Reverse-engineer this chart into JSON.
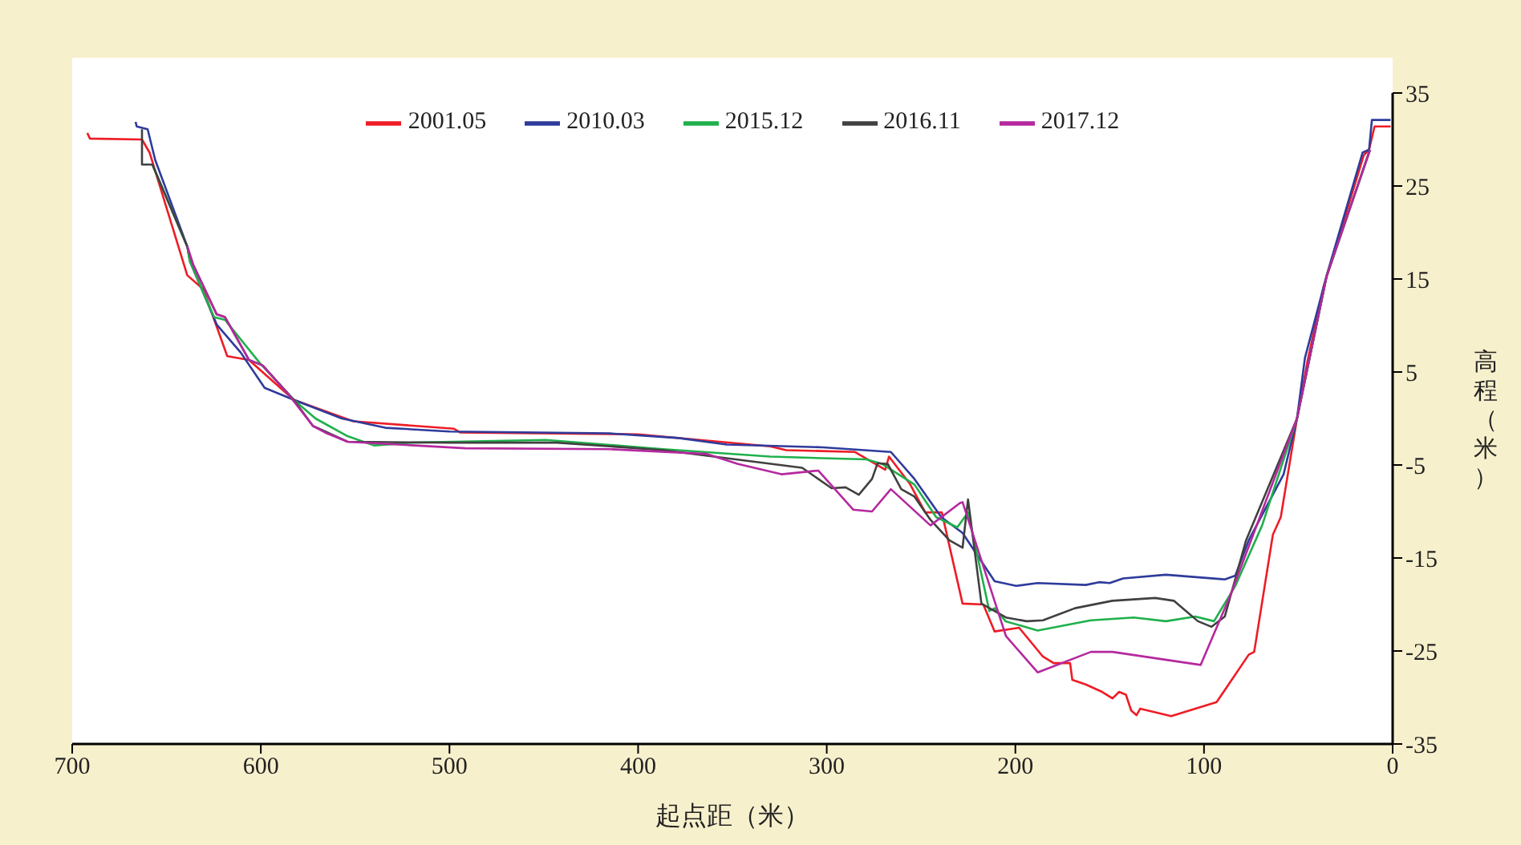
{
  "chart_data": {
    "type": "line",
    "xlabel": "起点距（米）",
    "ylabel": "高程（米）",
    "xlim": [
      700,
      0
    ],
    "xticks": [
      700,
      600,
      500,
      400,
      300,
      200,
      100,
      0
    ],
    "ylim": [
      -35,
      35
    ],
    "yticks": [
      -35,
      -25,
      -15,
      -5,
      5,
      15,
      25,
      35
    ],
    "grid": false,
    "legend": "top",
    "marker": "none",
    "line_style": "solid",
    "series": [
      {
        "name": "2001.05",
        "color": "#ee1c25",
        "x": [
          692,
          690.6,
          663,
          659,
          639,
          630.5,
          617.8,
          606.3,
          582.5,
          551,
          497.6,
          494.4,
          400,
          330,
          321.5,
          285,
          269,
          267,
          256,
          247.8,
          239,
          228,
          217,
          211,
          198,
          185.4,
          179.7,
          171,
          169.8,
          162.7,
          154,
          148.5,
          145,
          141.4,
          138.6,
          135.8,
          133.8,
          117.4,
          93.3,
          76.3,
          73.4,
          63.5,
          59.3,
          50.7,
          45,
          36.6,
          15.3,
          12.5,
          9.6,
          1.1
        ],
        "values": [
          30.7,
          30.1,
          30.0,
          28.6,
          15.4,
          13.9,
          6.7,
          6.3,
          2.0,
          -0.3,
          -1.1,
          -1.5,
          -1.7,
          -3.0,
          -3.4,
          -3.6,
          -5.5,
          -4.1,
          -7.0,
          -10.1,
          -10.1,
          -19.9,
          -20.0,
          -22.9,
          -22.5,
          -25.6,
          -26.3,
          -26.3,
          -28.1,
          -28.6,
          -29.4,
          -30.1,
          -29.4,
          -29.7,
          -31.4,
          -31.9,
          -31.2,
          -32.0,
          -30.5,
          -25.4,
          -25.1,
          -12.5,
          -10.6,
          0.0,
          6.3,
          14.2,
          28.3,
          28.9,
          31.4,
          31.4
        ]
      },
      {
        "name": "2010.03",
        "color": "#2e3b9c",
        "x": [
          666.4,
          665.8,
          660,
          656,
          639,
          637.6,
          623.4,
          610.7,
          598,
          582.5,
          557,
          534,
          500,
          415,
          378.5,
          353,
          302,
          266,
          253.5,
          239.3,
          228,
          211,
          199.6,
          188.2,
          162.7,
          155.6,
          150,
          142.9,
          120.2,
          89,
          83.4,
          76.3,
          57.8,
          50.7,
          46.5,
          35.1,
          15.9,
          12.5,
          11,
          1.1
        ],
        "values": [
          31.9,
          31.4,
          31.1,
          27.8,
          18.5,
          16.9,
          10.1,
          7.1,
          3.3,
          2.0,
          0.0,
          -1.0,
          -1.4,
          -1.6,
          -2.1,
          -2.8,
          -3.1,
          -3.6,
          -6.5,
          -10.6,
          -12.3,
          -17.5,
          -18.0,
          -17.7,
          -17.9,
          -17.6,
          -17.7,
          -17.2,
          -16.8,
          -17.3,
          -16.9,
          -13.1,
          -6.0,
          0.0,
          6.5,
          15.3,
          28.6,
          28.9,
          32.1,
          32.1
        ]
      },
      {
        "name": "2015.12",
        "color": "#1fb04b",
        "x": [
          657.5,
          639,
          637.6,
          624.8,
          619,
          600.7,
          582.5,
          571,
          554,
          540,
          520,
          449,
          386.7,
          330,
          279,
          270.5,
          253.5,
          242,
          230.8,
          225.1,
          213.8,
          211,
          205.2,
          188.2,
          160,
          137.2,
          120.2,
          104.6,
          94.7,
          83.4,
          69.2,
          50.7,
          35,
          12
        ],
        "values": [
          27.3,
          18.5,
          16.9,
          10.9,
          10.6,
          6.0,
          2.0,
          0.0,
          -1.9,
          -2.9,
          -2.6,
          -2.3,
          -3.3,
          -4.1,
          -4.4,
          -4.9,
          -7.1,
          -10.6,
          -11.7,
          -10.1,
          -20.7,
          -20.4,
          -21.8,
          -22.8,
          -21.7,
          -21.4,
          -21.8,
          -21.3,
          -21.8,
          -18.0,
          -11.5,
          0.0,
          15.3,
          28.9
        ]
      },
      {
        "name": "2016.11",
        "color": "#404040",
        "x": [
          663,
          663,
          657.5,
          639,
          636,
          623.4,
          619,
          606.3,
          599,
          582.5,
          572.4,
          554,
          500,
          443,
          386.7,
          313,
          297.4,
          290,
          283,
          276,
          273,
          267.6,
          260.5,
          253.5,
          245,
          235,
          228,
          225.1,
          218,
          205,
          194,
          185.4,
          168.4,
          148.6,
          125.9,
          116,
          103.2,
          96,
          89,
          77.7,
          50.7,
          35,
          12
        ],
        "values": [
          31.1,
          27.3,
          27.3,
          18.5,
          16.6,
          11.2,
          10.9,
          6.3,
          5.7,
          2.0,
          -0.8,
          -2.5,
          -2.6,
          -2.6,
          -3.4,
          -5.3,
          -7.5,
          -7.4,
          -8.2,
          -6.5,
          -4.8,
          -4.9,
          -7.6,
          -8.4,
          -10.9,
          -13.1,
          -13.9,
          -8.7,
          -19.9,
          -21.4,
          -21.8,
          -21.7,
          -20.4,
          -19.6,
          -19.3,
          -19.6,
          -21.8,
          -22.4,
          -21.3,
          -13.1,
          0.0,
          15.3,
          28.9
        ]
      },
      {
        "name": "2017.12",
        "color": "#b5289e",
        "x": [
          639,
          636,
          623.4,
          619,
          606.3,
          599,
          585,
          572.4,
          565,
          554,
          491.6,
          415,
          364,
          347,
          324,
          304.5,
          286,
          276,
          266,
          245,
          229.4,
          228,
          205,
          188.2,
          160,
          148.5,
          101.8,
          86.2,
          50.7,
          35,
          12
        ],
        "values": [
          18.5,
          16.6,
          11.2,
          10.9,
          6.3,
          5.7,
          2.5,
          -0.8,
          -1.6,
          -2.5,
          -3.2,
          -3.3,
          -3.8,
          -4.9,
          -6.0,
          -5.6,
          -9.8,
          -10.0,
          -7.6,
          -11.5,
          -9.1,
          -9.0,
          -23.4,
          -27.3,
          -25.1,
          -25.1,
          -26.5,
          -19.1,
          0.0,
          15.3,
          28.9
        ]
      }
    ]
  }
}
